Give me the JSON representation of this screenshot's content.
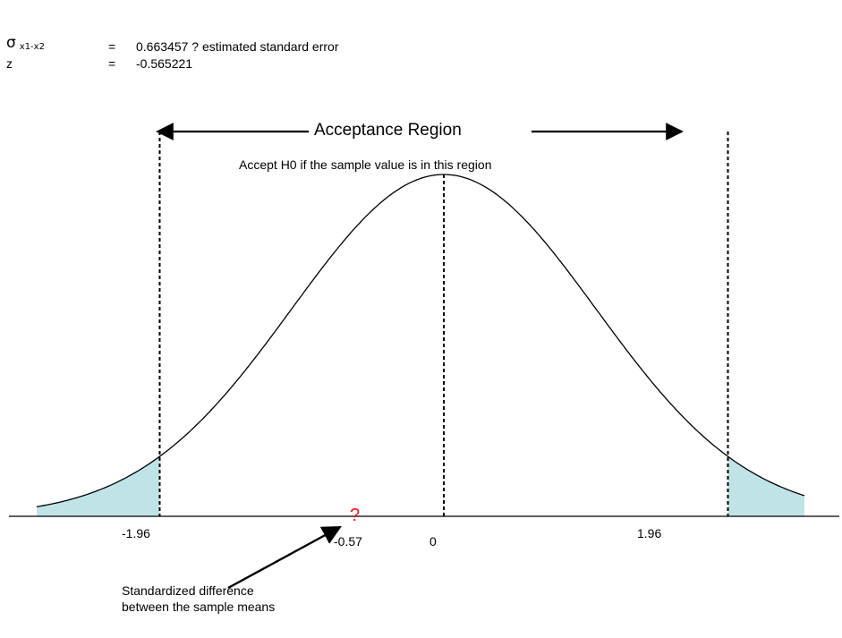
{
  "header": {
    "sigma_symbol": "σ",
    "sigma_subscript": "x1-x2",
    "sigma_equals": "=",
    "sigma_value": "0.663457 ? estimated standard error",
    "z_label": "z",
    "z_equals": "=",
    "z_value": "-0.565221"
  },
  "diagram": {
    "region_title": "Acceptance Region",
    "region_note": "Accept H0 if the sample value is in this region",
    "tick_left": "-1.96",
    "tick_right": "1.96",
    "tick_center": "0",
    "sample_value": "-0.57",
    "sample_marker": "?",
    "annotation": "Standardized difference between the sample means",
    "critical_values": [
      -1.96,
      1.96
    ],
    "sample_z": -0.57,
    "tail_color": "#bfe3e6",
    "curve_color": "#000000",
    "marker_color": "#e21b1b"
  }
}
